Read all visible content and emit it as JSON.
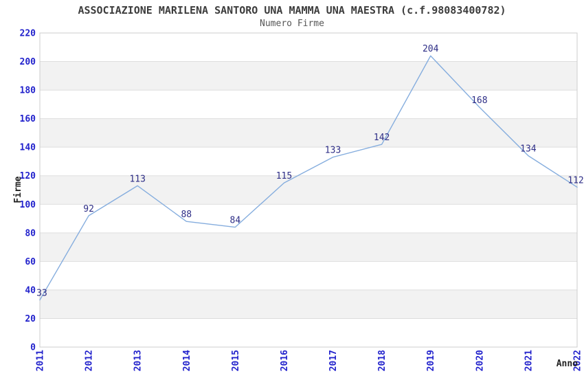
{
  "chart_data": {
    "type": "line",
    "title": "ASSOCIAZIONE MARILENA SANTORO UNA MAMMA UNA MAESTRA (c.f.98083400782)",
    "subtitle": "Numero Firme",
    "xlabel": "Anno",
    "ylabel": "Firme",
    "categories": [
      "2011",
      "2012",
      "2013",
      "2014",
      "2015",
      "2016",
      "2017",
      "2018",
      "2019",
      "2020",
      "2021",
      "2022"
    ],
    "values": [
      33,
      92,
      113,
      88,
      84,
      115,
      133,
      142,
      204,
      168,
      134,
      112
    ],
    "ylim": [
      0,
      220
    ],
    "ytick_step": 20,
    "grid": true,
    "banded_background": true,
    "legend_position": "none",
    "colors": {
      "line": "#85ADDE",
      "data_label": "#2D2D86",
      "tick_label": "#2222CC",
      "band": "#F2F2F2",
      "gridline": "#DDDDDD",
      "plot_border": "#CCCCCC",
      "title": "#3C3C3C",
      "subtitle": "#565656",
      "axis_title": "#222222",
      "background": "#FFFFFF"
    }
  }
}
